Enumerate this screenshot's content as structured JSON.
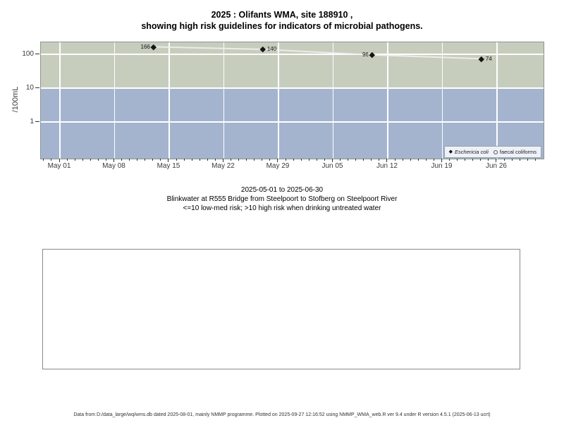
{
  "title": {
    "line1": "2025 : Olifants WMA, site 188910 ,",
    "line2": "showing high risk guidelines for indicators of microbial pathogens."
  },
  "chart_data": {
    "type": "scatter",
    "title": "2025 : Olifants WMA, site 188910 , showing high risk guidelines for indicators of microbial pathogens.",
    "ylabel": "/100mL",
    "y_scale": "log",
    "ylim": [
      0.08,
      230
    ],
    "x_range": [
      "2025-05-01",
      "2025-06-30"
    ],
    "grid": true,
    "legend_position": "bottom-right",
    "y_ticks": [
      {
        "label": "100",
        "value": 100
      },
      {
        "label": "10",
        "value": 10
      },
      {
        "label": "1",
        "value": 1
      }
    ],
    "x_ticks": [
      {
        "label": "May 01",
        "day": 0
      },
      {
        "label": "May 08",
        "day": 7
      },
      {
        "label": "May 15",
        "day": 14
      },
      {
        "label": "May 22",
        "day": 21
      },
      {
        "label": "May 29",
        "day": 28
      },
      {
        "label": "Jun 05",
        "day": 35
      },
      {
        "label": "Jun 12",
        "day": 42
      },
      {
        "label": "Jun 19",
        "day": 49
      },
      {
        "label": "Jun 26",
        "day": 56
      }
    ],
    "series": [
      {
        "name": "Eschericia coli",
        "marker": "filled-diamond",
        "color": "#141414",
        "points": [
          {
            "date": "2025-05-13",
            "day": 12,
            "value": 166,
            "label": "166",
            "label_side": "left"
          },
          {
            "date": "2025-05-27",
            "day": 26,
            "value": 140,
            "label": "140",
            "label_side": "right"
          },
          {
            "date": "2025-06-10",
            "day": 40,
            "value": 96,
            "label": "96",
            "label_side": "left"
          },
          {
            "date": "2025-06-24",
            "day": 54,
            "value": 74,
            "label": "74",
            "label_side": "right"
          }
        ]
      },
      {
        "name": "faecal coliforms",
        "marker": "open-circle",
        "color": "#f0f0f0",
        "points": []
      }
    ],
    "connector_line_color": "#f0f0f0",
    "risk_zones": [
      {
        "name": "high risk",
        "rule": ">10",
        "color": "#c6cdbd"
      },
      {
        "name": "low-med risk",
        "rule": "<=10",
        "color": "#a4b4ce"
      }
    ]
  },
  "legend": {
    "items": [
      {
        "marker": "filled-diamond",
        "label": "Eschericia coli"
      },
      {
        "marker": "open-circle",
        "label": "faecal coliforms"
      }
    ]
  },
  "subtitle": {
    "line1": "2025-05-01 to 2025-06-30",
    "line2": "Blinkwater at R555 Bridge from Steelpoort to Stofberg on Steelpoort River",
    "line3": "<=10 low-med risk; >10 high risk when drinking untreated water"
  },
  "footer": "Data from D:/data_large/wq/wms.db dated 2025-08-01, mainly NMMP programme. Plotted on 2025-09-27 12:16:52 using NMMP_WMA_web.R ver 9.4 under R version 4.5.1 (2025-06-13 ucrt)"
}
